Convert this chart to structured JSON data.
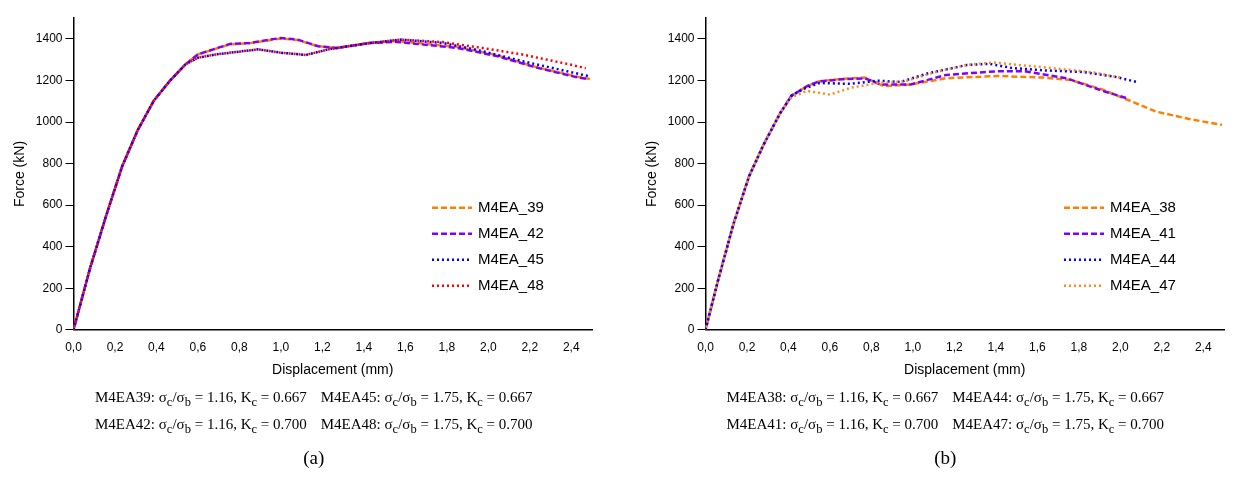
{
  "chart_data": [
    {
      "type": "line",
      "xlabel": "Displacement (mm)",
      "ylabel": "Force (kN)",
      "xlim": [
        0,
        2.5
      ],
      "ylim": [
        0,
        1500
      ],
      "xticks": [
        {
          "value": 0,
          "label": "0,0"
        },
        {
          "value": 0.2,
          "label": "0,2"
        },
        {
          "value": 0.4,
          "label": "0,4"
        },
        {
          "value": 0.6,
          "label": "0,6"
        },
        {
          "value": 0.8,
          "label": "0,8"
        },
        {
          "value": 1,
          "label": "1,0"
        },
        {
          "value": 1.2,
          "label": "1,2"
        },
        {
          "value": 1.4,
          "label": "1,4"
        },
        {
          "value": 1.6,
          "label": "1,6"
        },
        {
          "value": 1.8,
          "label": "1,8"
        },
        {
          "value": 2,
          "label": "2,0"
        },
        {
          "value": 2.2,
          "label": "2,2"
        },
        {
          "value": 2.4,
          "label": "2,4"
        }
      ],
      "yticks": [
        0,
        200,
        400,
        600,
        800,
        1000,
        1200,
        1400
      ],
      "grid": false,
      "legend": "bottom right",
      "marker": "none",
      "series": [
        {
          "name": "M4EA_39",
          "color": "#ff8000",
          "line_style": "dashed",
          "x": [
            0,
            0.08,
            0.158,
            0.235,
            0.31,
            0.388,
            0.465,
            0.54,
            0.6,
            0.754,
            0.85,
            1.0,
            1.08,
            1.18,
            1.27,
            1.43,
            1.56,
            1.66,
            1.85,
            2.04,
            2.23,
            2.43,
            2.49
          ],
          "values": [
            0,
            297,
            551,
            788,
            962,
            1104,
            1199,
            1278,
            1326,
            1374,
            1380,
            1402,
            1395,
            1365,
            1357,
            1381,
            1390,
            1380,
            1362,
            1322,
            1265,
            1218,
            1207
          ]
        },
        {
          "name": "M4EA_42",
          "color": "#8000ff",
          "line_style": "dashed",
          "x": [
            0,
            0.08,
            0.158,
            0.235,
            0.31,
            0.388,
            0.465,
            0.54,
            0.6,
            0.754,
            0.85,
            1.0,
            1.08,
            1.18,
            1.27,
            1.43,
            1.56,
            1.66,
            1.85,
            2.04,
            2.23,
            2.43,
            2.48
          ],
          "values": [
            0,
            297,
            551,
            788,
            962,
            1104,
            1199,
            1278,
            1326,
            1376,
            1381,
            1405,
            1397,
            1365,
            1357,
            1381,
            1386,
            1376,
            1357,
            1318,
            1263,
            1215,
            1207
          ]
        },
        {
          "name": "M4EA_45",
          "color": "#0000ff",
          "line_style": "dotted",
          "x": [
            0,
            0.08,
            0.158,
            0.235,
            0.31,
            0.388,
            0.465,
            0.54,
            0.6,
            0.69,
            0.89,
            1.0,
            1.12,
            1.23,
            1.43,
            1.58,
            1.78,
            1.97,
            2.16,
            2.48
          ],
          "values": [
            0,
            297,
            551,
            788,
            962,
            1104,
            1199,
            1278,
            1310,
            1326,
            1350,
            1334,
            1323,
            1350,
            1381,
            1397,
            1381,
            1342,
            1294,
            1222
          ]
        },
        {
          "name": "M4EA_48",
          "color": "#ff0000",
          "line_style": "dotted",
          "x": [
            0,
            0.08,
            0.158,
            0.235,
            0.31,
            0.388,
            0.465,
            0.54,
            0.6,
            0.69,
            0.89,
            1.0,
            1.12,
            1.23,
            1.43,
            1.58,
            1.78,
            1.97,
            2.16,
            2.39,
            2.47
          ],
          "values": [
            0,
            297,
            551,
            788,
            962,
            1104,
            1199,
            1278,
            1310,
            1326,
            1350,
            1334,
            1323,
            1350,
            1381,
            1397,
            1385,
            1357,
            1326,
            1278,
            1259
          ]
        }
      ],
      "annotations": [
        "M4EA39: σ$_{c}$/σ$_{b}$ = 1.16, K$_{c}$ = 0.667",
        "M4EA45: σ$_{c}$/σ$_{b}$ = 1.75, K$_{c}$ = 0.667",
        "M4EA42: σ$_{c}$/σ$_{b}$ = 1.16, K$_{c}$ = 0.700",
        "M4EA48: σ$_{c}$/σ$_{b}$ = 1.75, K$_{c}$ = 0.700",
        "(a)"
      ]
    },
    {
      "type": "line",
      "xlabel": "Displacement (mm)",
      "ylabel": "Force (kN)",
      "xlim": [
        0,
        2.5
      ],
      "ylim": [
        0,
        1500
      ],
      "xticks": [
        {
          "value": 0,
          "label": "0,0"
        },
        {
          "value": 0.2,
          "label": "0,2"
        },
        {
          "value": 0.4,
          "label": "0,4"
        },
        {
          "value": 0.6,
          "label": "0,6"
        },
        {
          "value": 0.8,
          "label": "0,8"
        },
        {
          "value": 1,
          "label": "1,0"
        },
        {
          "value": 1.2,
          "label": "1,2"
        },
        {
          "value": 1.4,
          "label": "1,4"
        },
        {
          "value": 1.6,
          "label": "1,6"
        },
        {
          "value": 1.8,
          "label": "1,8"
        },
        {
          "value": 2,
          "label": "2,0"
        },
        {
          "value": 2.2,
          "label": "2,2"
        },
        {
          "value": 2.4,
          "label": "2,4"
        }
      ],
      "yticks": [
        0,
        200,
        400,
        600,
        800,
        1000,
        1200,
        1400
      ],
      "grid": false,
      "legend": "bottom right",
      "marker": "none",
      "series": [
        {
          "name": "M4EA_38",
          "color": "#ff8000",
          "line_style": "dashed",
          "x": [
            0,
            0.06,
            0.135,
            0.21,
            0.28,
            0.36,
            0.415,
            0.49,
            0.546,
            0.66,
            0.77,
            0.86,
            0.99,
            1.16,
            1.41,
            1.63,
            1.76,
            1.91,
            2.06,
            2.17,
            2.34,
            2.49
          ],
          "values": [
            0,
            236,
            510,
            739,
            891,
            1043,
            1127,
            1173,
            1196,
            1208,
            1214,
            1173,
            1181,
            1211,
            1222,
            1214,
            1203,
            1158,
            1097,
            1051,
            1013,
            987
          ]
        },
        {
          "name": "M4EA_41",
          "color": "#8000ff",
          "line_style": "dashed",
          "x": [
            0,
            0.06,
            0.135,
            0.21,
            0.28,
            0.36,
            0.415,
            0.49,
            0.546,
            0.66,
            0.77,
            0.845,
            0.99,
            1.16,
            1.41,
            1.54,
            1.74,
            1.91,
            2.04
          ],
          "values": [
            0,
            236,
            510,
            739,
            891,
            1043,
            1127,
            1173,
            1196,
            1206,
            1210,
            1181,
            1181,
            1227,
            1245,
            1245,
            1211,
            1152,
            1112
          ]
        },
        {
          "name": "M4EA_44",
          "color": "#0000ff",
          "line_style": "dotted",
          "x": [
            0,
            0.06,
            0.135,
            0.21,
            0.28,
            0.36,
            0.415,
            0.47,
            0.55,
            0.7,
            0.83,
            0.94,
            1.07,
            1.26,
            1.37,
            1.48,
            1.63,
            1.82,
            1.97,
            2.08
          ],
          "values": [
            0,
            236,
            510,
            739,
            891,
            1043,
            1127,
            1158,
            1188,
            1184,
            1199,
            1193,
            1234,
            1275,
            1280,
            1260,
            1249,
            1241,
            1219,
            1193
          ]
        },
        {
          "name": "M4EA_47",
          "color": "#ff8c1a",
          "line_style": "dotted",
          "x": [
            0,
            0.06,
            0.135,
            0.21,
            0.28,
            0.36,
            0.415,
            0.49,
            0.6,
            0.7,
            0.83,
            0.96,
            1.11,
            1.26,
            1.39,
            1.54,
            1.7,
            1.87,
            2.0
          ],
          "values": [
            0,
            236,
            510,
            739,
            891,
            1043,
            1120,
            1150,
            1132,
            1165,
            1188,
            1196,
            1241,
            1275,
            1287,
            1272,
            1257,
            1239,
            1214
          ]
        }
      ],
      "annotations": [
        "M4EA38: σ$_{c}$/σ$_{b}$ = 1.16, K$_{c}$ = 0.667",
        "M4EA44: σ$_{c}$/σ$_{b}$ = 1.75, K$_{c}$ = 0.667",
        "M4EA41: σ$_{c}$/σ$_{b}$ = 1.16, K$_{c}$ = 0.700",
        "M4EA47: σ$_{c}$/σ$_{b}$ = 1.75, K$_{c}$ = 0.700",
        "(b)"
      ]
    }
  ]
}
